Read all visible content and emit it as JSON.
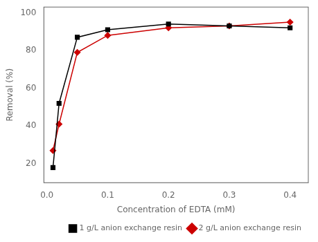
{
  "chart_data": {
    "type": "line",
    "xlabel": "Concentration of EDTA (mM)",
    "ylabel": "Removal (%)",
    "x": [
      0.01,
      0.02,
      0.05,
      0.1,
      0.2,
      0.3,
      0.4
    ],
    "series": [
      {
        "name": "1 g/L anion exchange resin",
        "color": "black",
        "marker": "square",
        "values": [
          18,
          52,
          87,
          91,
          94,
          93,
          92
        ]
      },
      {
        "name": "2 g/L anion exchange resin",
        "color": "#cc0000",
        "marker": "diamond",
        "values": [
          27,
          41,
          79,
          88,
          92,
          93,
          95
        ]
      }
    ],
    "xlim": [
      -0.005,
      0.43
    ],
    "ylim": [
      10,
      103
    ],
    "xticks": [
      {
        "value": 0.0,
        "label": "0.0"
      },
      0.1,
      0.2,
      0.3,
      0.4
    ],
    "yticks": [
      20,
      40,
      60,
      80,
      100
    ],
    "legend": "lower right",
    "grid": false
  }
}
